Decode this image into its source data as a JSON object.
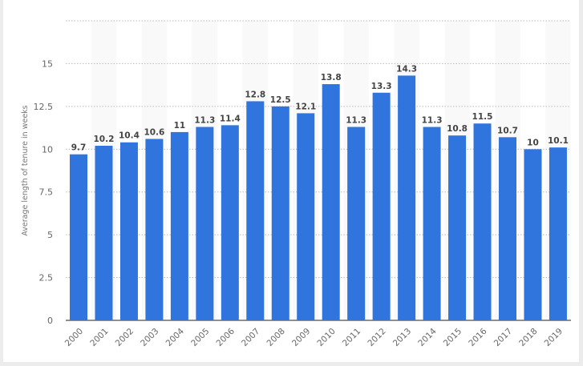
{
  "chart_data": {
    "type": "bar",
    "title": "",
    "xlabel": "",
    "ylabel": "Average length of tenure in weeks",
    "categories": [
      "2000",
      "2001",
      "2002",
      "2003",
      "2004",
      "2005",
      "2006",
      "2007",
      "2008",
      "2009",
      "2010",
      "2011",
      "2012",
      "2013",
      "2014",
      "2015",
      "2016",
      "2017",
      "2018",
      "2019"
    ],
    "values": [
      9.7,
      10.2,
      10.4,
      10.6,
      11,
      11.3,
      11.4,
      12.8,
      12.5,
      12.1,
      13.8,
      11.3,
      13.3,
      14.3,
      11.3,
      10.8,
      11.5,
      10.7,
      10,
      10.1
    ],
    "data_labels": [
      "9.7",
      "10.2",
      "10.4",
      "10.6",
      "11",
      "11.3",
      "11.4",
      "12.8",
      "12.5",
      "12.1",
      "13.8",
      "11.3",
      "13.3",
      "14.3",
      "11.3",
      "10.8",
      "11.5",
      "10.7",
      "10",
      "10.1"
    ],
    "ylim": [
      0,
      17.5
    ],
    "yticks": [
      "0",
      "2.5",
      "5",
      "7.5",
      "10",
      "12.5",
      "15"
    ],
    "grid": true,
    "bar_color": "#3074dd",
    "band_color": "#f9f9f9"
  }
}
